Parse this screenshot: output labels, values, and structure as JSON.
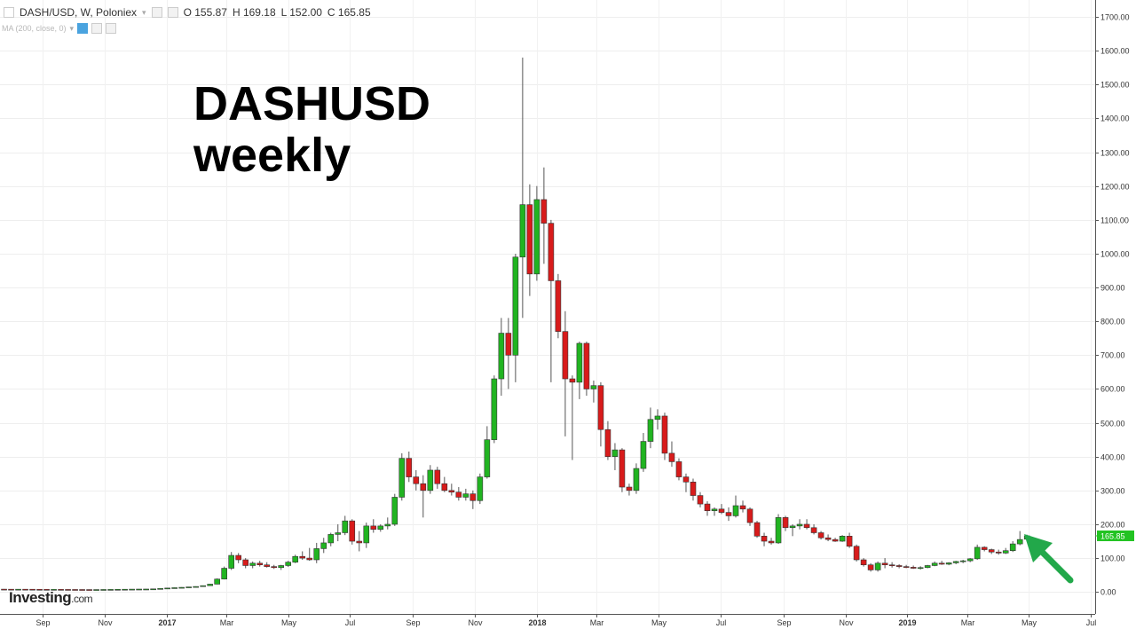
{
  "legend": {
    "symbol": "DASH/USD, W, Poloniex",
    "open": "O 155.87",
    "high": "H 169.18",
    "low": "L 152.00",
    "close": "C 165.85",
    "indicator": "MA (200, close, 0)"
  },
  "overlay": {
    "line1": "DASHUSD",
    "line2": "weekly"
  },
  "logo": {
    "main": "Investing",
    "suffix": ".com"
  },
  "colors": {
    "up": "#21b421",
    "down": "#d81b1b",
    "arrow": "#22a84a",
    "last_price_bg": "#22c322"
  },
  "chart_data": {
    "type": "candlestick",
    "title": "",
    "ylim": [
      -65,
      1750
    ],
    "y_ticks": [
      "1700.00",
      "1600.00",
      "1500.00",
      "1400.00",
      "1300.00",
      "1200.00",
      "1100.00",
      "1000.00",
      "900.00",
      "800.00",
      "700.00",
      "600.00",
      "500.00",
      "400.00",
      "300.00",
      "200.00",
      "100.00",
      "0.00"
    ],
    "last_price_label": "165.85",
    "last_price": 165.85,
    "x_labels": [
      "Sep",
      "Nov",
      "2017",
      "Mar",
      "May",
      "Jul",
      "Sep",
      "Nov",
      "2018",
      "Mar",
      "May",
      "Jul",
      "Sep",
      "Nov",
      "2019",
      "Mar",
      "May",
      "Jul"
    ],
    "x_label_dates": [
      "2016-09-01",
      "2016-11-01",
      "2017-01-01",
      "2017-03-01",
      "2017-05-01",
      "2017-07-01",
      "2017-09-01",
      "2017-11-01",
      "2018-01-01",
      "2018-03-01",
      "2018-05-01",
      "2018-07-01",
      "2018-09-01",
      "2018-11-01",
      "2019-01-01",
      "2019-03-01",
      "2019-05-01",
      "2019-07-01"
    ],
    "bold_x_labels": [
      "2017",
      "2018",
      "2019"
    ],
    "annotation": "arrow pointing to latest candle",
    "candles": [
      [
        "2016-07-18",
        8.0,
        8.5,
        7.6,
        8.2
      ],
      [
        "2016-07-25",
        8.2,
        8.6,
        7.8,
        8.0
      ],
      [
        "2016-08-01",
        8.0,
        8.4,
        7.5,
        7.8
      ],
      [
        "2016-08-08",
        7.8,
        8.2,
        7.4,
        8.0
      ],
      [
        "2016-08-15",
        8.0,
        8.3,
        7.7,
        7.9
      ],
      [
        "2016-08-22",
        7.9,
        8.2,
        7.5,
        7.7
      ],
      [
        "2016-08-29",
        7.7,
        8.0,
        7.3,
        7.6
      ],
      [
        "2016-09-05",
        7.6,
        7.9,
        7.2,
        7.4
      ],
      [
        "2016-09-12",
        7.4,
        7.8,
        7.1,
        7.5
      ],
      [
        "2016-09-19",
        7.5,
        7.8,
        7.2,
        7.3
      ],
      [
        "2016-09-26",
        7.3,
        7.6,
        7.0,
        7.2
      ],
      [
        "2016-10-03",
        7.2,
        7.5,
        6.9,
        7.1
      ],
      [
        "2016-10-10",
        7.1,
        7.4,
        6.8,
        7.0
      ],
      [
        "2016-10-17",
        7.0,
        7.3,
        6.7,
        6.9
      ],
      [
        "2016-10-24",
        6.9,
        7.2,
        6.6,
        7.0
      ],
      [
        "2016-10-31",
        7.0,
        7.4,
        6.8,
        7.2
      ],
      [
        "2016-11-07",
        7.2,
        7.6,
        7.0,
        7.4
      ],
      [
        "2016-11-14",
        7.4,
        7.9,
        7.2,
        7.7
      ],
      [
        "2016-11-21",
        7.7,
        8.1,
        7.5,
        7.9
      ],
      [
        "2016-11-28",
        7.9,
        8.4,
        7.7,
        8.2
      ],
      [
        "2016-12-05",
        8.2,
        8.6,
        8.0,
        8.4
      ],
      [
        "2016-12-12",
        8.4,
        8.8,
        8.1,
        8.5
      ],
      [
        "2016-12-19",
        8.5,
        9.2,
        8.3,
        9.0
      ],
      [
        "2016-12-26",
        9.0,
        10.5,
        8.8,
        10.2
      ],
      [
        "2017-01-02",
        10.2,
        12.0,
        9.8,
        11.5
      ],
      [
        "2017-01-09",
        11.5,
        13.0,
        11.0,
        12.5
      ],
      [
        "2017-01-16",
        12.5,
        14.0,
        12.0,
        13.5
      ],
      [
        "2017-01-23",
        13.5,
        15.0,
        13.0,
        14.8
      ],
      [
        "2017-01-30",
        14.8,
        16.5,
        14.3,
        16.0
      ],
      [
        "2017-02-06",
        16.0,
        19.0,
        15.5,
        18.5
      ],
      [
        "2017-02-13",
        18.5,
        24.0,
        18.0,
        23.0
      ],
      [
        "2017-02-20",
        23.0,
        40.0,
        22.5,
        38.0
      ],
      [
        "2017-02-27",
        38.0,
        75.0,
        37.0,
        70.0
      ],
      [
        "2017-03-06",
        70.0,
        118.0,
        65.0,
        108.0
      ],
      [
        "2017-03-13",
        108.0,
        115.0,
        85.0,
        95.0
      ],
      [
        "2017-03-20",
        95.0,
        100.0,
        70.0,
        78.0
      ],
      [
        "2017-03-27",
        78.0,
        90.0,
        70.0,
        85.0
      ],
      [
        "2017-04-03",
        85.0,
        92.0,
        75.0,
        80.0
      ],
      [
        "2017-04-10",
        80.0,
        88.0,
        72.0,
        75.0
      ],
      [
        "2017-04-17",
        75.0,
        80.0,
        68.0,
        72.0
      ],
      [
        "2017-04-24",
        72.0,
        80.0,
        65.0,
        78.0
      ],
      [
        "2017-05-01",
        78.0,
        92.0,
        74.0,
        88.0
      ],
      [
        "2017-05-08",
        88.0,
        110.0,
        85.0,
        105.0
      ],
      [
        "2017-05-15",
        105.0,
        120.0,
        95.0,
        100.0
      ],
      [
        "2017-05-22",
        100.0,
        130.0,
        92.0,
        95.0
      ],
      [
        "2017-05-29",
        95.0,
        145.0,
        85.0,
        128.0
      ],
      [
        "2017-06-05",
        128.0,
        160.0,
        115.0,
        145.0
      ],
      [
        "2017-06-12",
        145.0,
        175.0,
        135.0,
        170.0
      ],
      [
        "2017-06-19",
        170.0,
        200.0,
        150.0,
        175.0
      ],
      [
        "2017-06-26",
        175.0,
        225.0,
        168.0,
        210.0
      ],
      [
        "2017-07-03",
        210.0,
        215.0,
        140.0,
        150.0
      ],
      [
        "2017-07-10",
        150.0,
        180.0,
        120.0,
        145.0
      ],
      [
        "2017-07-17",
        145.0,
        205.0,
        130.0,
        195.0
      ],
      [
        "2017-07-24",
        195.0,
        215.0,
        175.0,
        185.0
      ],
      [
        "2017-07-31",
        185.0,
        200.0,
        178.0,
        195.0
      ],
      [
        "2017-08-07",
        195.0,
        220.0,
        185.0,
        200.0
      ],
      [
        "2017-08-14",
        200.0,
        290.0,
        195.0,
        280.0
      ],
      [
        "2017-08-21",
        280.0,
        410.0,
        270.0,
        395.0
      ],
      [
        "2017-08-28",
        395.0,
        415.0,
        325.0,
        340.0
      ],
      [
        "2017-09-04",
        340.0,
        360.0,
        300.0,
        320.0
      ],
      [
        "2017-09-11",
        320.0,
        345.0,
        220.0,
        300.0
      ],
      [
        "2017-09-18",
        300.0,
        375.0,
        290.0,
        360.0
      ],
      [
        "2017-09-25",
        360.0,
        370.0,
        305.0,
        320.0
      ],
      [
        "2017-10-02",
        320.0,
        340.0,
        295.0,
        300.0
      ],
      [
        "2017-10-09",
        300.0,
        320.0,
        285.0,
        295.0
      ],
      [
        "2017-10-16",
        295.0,
        310.0,
        270.0,
        280.0
      ],
      [
        "2017-10-23",
        280.0,
        305.0,
        270.0,
        290.0
      ],
      [
        "2017-10-30",
        290.0,
        300.0,
        245.0,
        270.0
      ],
      [
        "2017-11-06",
        270.0,
        350.0,
        260.0,
        340.0
      ],
      [
        "2017-11-13",
        340.0,
        490.0,
        335.0,
        450.0
      ],
      [
        "2017-11-20",
        450.0,
        640.0,
        440.0,
        630.0
      ],
      [
        "2017-11-27",
        630.0,
        810.0,
        580.0,
        765.0
      ],
      [
        "2017-12-04",
        765.0,
        810.0,
        600.0,
        700.0
      ],
      [
        "2017-12-11",
        700.0,
        1000.0,
        620.0,
        990.0
      ],
      [
        "2017-12-18",
        990.0,
        1580.0,
        810.0,
        1145.0
      ],
      [
        "2017-12-25",
        1145.0,
        1205.0,
        875.0,
        940.0
      ],
      [
        "2018-01-01",
        940.0,
        1200.0,
        920.0,
        1160.0
      ],
      [
        "2018-01-08",
        1160.0,
        1255.0,
        970.0,
        1090.0
      ],
      [
        "2018-01-15",
        1090.0,
        1100.0,
        620.0,
        920.0
      ],
      [
        "2018-01-22",
        920.0,
        940.0,
        750.0,
        770.0
      ],
      [
        "2018-01-29",
        770.0,
        830.0,
        460.0,
        630.0
      ],
      [
        "2018-02-05",
        630.0,
        640.0,
        390.0,
        620.0
      ],
      [
        "2018-02-12",
        620.0,
        740.0,
        570.0,
        735.0
      ],
      [
        "2018-02-19",
        735.0,
        740.0,
        580.0,
        600.0
      ],
      [
        "2018-02-26",
        600.0,
        625.0,
        560.0,
        610.0
      ],
      [
        "2018-03-05",
        610.0,
        620.0,
        430.0,
        480.0
      ],
      [
        "2018-03-12",
        480.0,
        505.0,
        390.0,
        400.0
      ],
      [
        "2018-03-19",
        400.0,
        440.0,
        360.0,
        420.0
      ],
      [
        "2018-03-26",
        420.0,
        425.0,
        295.0,
        310.0
      ],
      [
        "2018-04-02",
        310.0,
        320.0,
        285.0,
        300.0
      ],
      [
        "2018-04-09",
        300.0,
        380.0,
        290.0,
        365.0
      ],
      [
        "2018-04-16",
        365.0,
        470.0,
        355.0,
        445.0
      ],
      [
        "2018-04-23",
        445.0,
        545.0,
        425.0,
        510.0
      ],
      [
        "2018-04-30",
        510.0,
        540.0,
        480.0,
        520.0
      ],
      [
        "2018-05-07",
        520.0,
        530.0,
        390.0,
        410.0
      ],
      [
        "2018-05-14",
        410.0,
        445.0,
        370.0,
        385.0
      ],
      [
        "2018-05-21",
        385.0,
        395.0,
        330.0,
        340.0
      ],
      [
        "2018-05-28",
        340.0,
        350.0,
        295.0,
        325.0
      ],
      [
        "2018-06-04",
        325.0,
        335.0,
        270.0,
        285.0
      ],
      [
        "2018-06-11",
        285.0,
        295.0,
        250.0,
        260.0
      ],
      [
        "2018-06-18",
        260.0,
        268.0,
        225.0,
        240.0
      ],
      [
        "2018-06-25",
        240.0,
        250.0,
        225.0,
        245.0
      ],
      [
        "2018-07-02",
        245.0,
        260.0,
        230.0,
        235.0
      ],
      [
        "2018-07-09",
        235.0,
        250.0,
        210.0,
        225.0
      ],
      [
        "2018-07-16",
        225.0,
        285.0,
        220.0,
        255.0
      ],
      [
        "2018-07-23",
        255.0,
        270.0,
        235.0,
        245.0
      ],
      [
        "2018-07-30",
        245.0,
        250.0,
        195.0,
        205.0
      ],
      [
        "2018-08-06",
        205.0,
        210.0,
        160.0,
        165.0
      ],
      [
        "2018-08-13",
        165.0,
        175.0,
        135.0,
        150.0
      ],
      [
        "2018-08-20",
        150.0,
        160.0,
        140.0,
        145.0
      ],
      [
        "2018-08-27",
        145.0,
        230.0,
        142.0,
        220.0
      ],
      [
        "2018-09-03",
        220.0,
        225.0,
        180.0,
        190.0
      ],
      [
        "2018-09-10",
        190.0,
        200.0,
        165.0,
        195.0
      ],
      [
        "2018-09-17",
        195.0,
        215.0,
        185.0,
        200.0
      ],
      [
        "2018-09-24",
        200.0,
        215.0,
        185.0,
        190.0
      ],
      [
        "2018-10-01",
        190.0,
        200.0,
        170.0,
        175.0
      ],
      [
        "2018-10-08",
        175.0,
        180.0,
        155.0,
        160.0
      ],
      [
        "2018-10-15",
        160.0,
        170.0,
        150.0,
        155.0
      ],
      [
        "2018-10-22",
        155.0,
        160.0,
        148.0,
        150.0
      ],
      [
        "2018-10-29",
        150.0,
        168.0,
        148.0,
        165.0
      ],
      [
        "2018-11-05",
        165.0,
        175.0,
        130.0,
        135.0
      ],
      [
        "2018-11-12",
        135.0,
        140.0,
        90.0,
        95.0
      ],
      [
        "2018-11-19",
        95.0,
        100.0,
        75.0,
        80.0
      ],
      [
        "2018-11-26",
        80.0,
        85.0,
        60.0,
        65.0
      ],
      [
        "2018-12-03",
        65.0,
        90.0,
        60.0,
        85.0
      ],
      [
        "2018-12-10",
        85.0,
        100.0,
        70.0,
        80.0
      ],
      [
        "2018-12-17",
        80.0,
        88.0,
        72.0,
        78.0
      ],
      [
        "2018-12-24",
        78.0,
        82.0,
        70.0,
        75.0
      ],
      [
        "2018-12-31",
        75.0,
        80.0,
        70.0,
        73.0
      ],
      [
        "2019-01-07",
        73.0,
        78.0,
        68.0,
        70.0
      ],
      [
        "2019-01-14",
        70.0,
        76.0,
        66.0,
        72.0
      ],
      [
        "2019-01-21",
        72.0,
        80.0,
        70.0,
        78.0
      ],
      [
        "2019-01-28",
        78.0,
        90.0,
        76.0,
        85.0
      ],
      [
        "2019-02-04",
        85.0,
        92.0,
        80.0,
        82.0
      ],
      [
        "2019-02-11",
        82.0,
        88.0,
        79.0,
        86.0
      ],
      [
        "2019-02-18",
        86.0,
        92.0,
        82.0,
        90.0
      ],
      [
        "2019-02-25",
        90.0,
        95.0,
        85.0,
        92.0
      ],
      [
        "2019-03-04",
        92.0,
        100.0,
        88.0,
        98.0
      ],
      [
        "2019-03-11",
        98.0,
        140.0,
        95.0,
        132.0
      ],
      [
        "2019-03-18",
        132.0,
        135.0,
        120.0,
        125.0
      ],
      [
        "2019-03-25",
        125.0,
        128.0,
        112.0,
        118.0
      ],
      [
        "2019-04-01",
        118.0,
        125.0,
        110.0,
        115.0
      ],
      [
        "2019-04-08",
        115.0,
        130.0,
        112.0,
        122.0
      ],
      [
        "2019-04-15",
        122.0,
        150.0,
        118.0,
        142.0
      ],
      [
        "2019-04-22",
        142.0,
        180.0,
        138.0,
        155.0
      ],
      [
        "2019-04-29",
        155.87,
        169.18,
        152.0,
        165.85
      ]
    ]
  }
}
